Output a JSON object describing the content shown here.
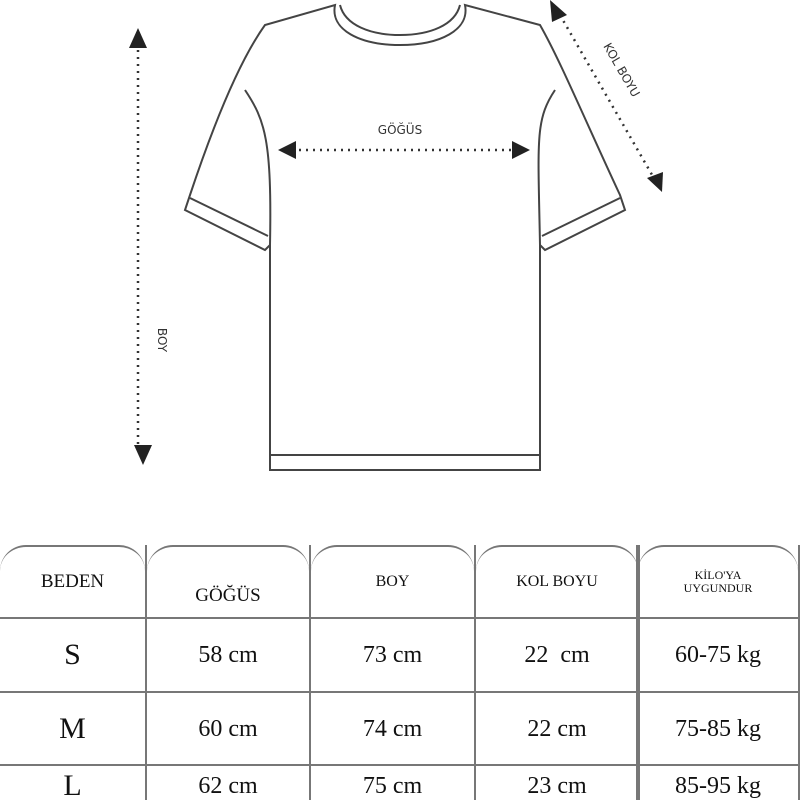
{
  "diagram": {
    "labels": {
      "chest": "GÖĞÜS",
      "length": "BOY",
      "sleeve": "KOL BOYU"
    }
  },
  "table": {
    "headers": [
      "BEDEN",
      "GÖĞÜS",
      "BOY",
      "KOL BOYU",
      "KİLO'YA UYGUNDUR"
    ],
    "header_kilo_line1": "KİLO'YA",
    "header_kilo_line2": "UYGUNDUR",
    "rows": [
      [
        "S",
        "58 cm",
        "73 cm",
        "22  cm",
        "60-75 kg"
      ],
      [
        "M",
        "60 cm",
        "74 cm",
        "22 cm",
        "75-85 kg"
      ],
      [
        "L",
        "62 cm",
        "75 cm",
        "23 cm",
        "85-95 kg"
      ]
    ]
  }
}
